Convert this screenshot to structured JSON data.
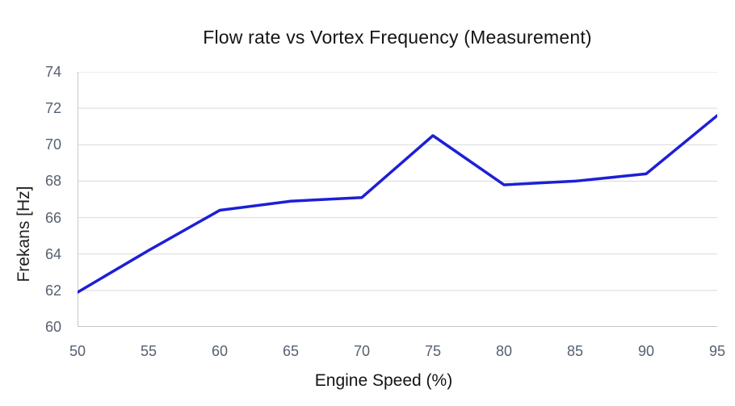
{
  "chart_data": {
    "type": "line",
    "title": "Flow rate vs Vortex Frequency (Measurement)",
    "xlabel": "Engine Speed (%)",
    "ylabel": "Frekans [Hz]",
    "x": [
      50,
      55,
      60,
      65,
      70,
      75,
      80,
      85,
      90,
      95
    ],
    "y": [
      61.9,
      64.2,
      66.4,
      66.9,
      67.1,
      70.5,
      67.8,
      68.0,
      68.4,
      71.6
    ],
    "xlim": [
      50,
      95
    ],
    "ylim": [
      60,
      74
    ],
    "x_ticks": [
      50,
      55,
      60,
      65,
      70,
      75,
      80,
      85,
      90,
      95
    ],
    "y_ticks": [
      60,
      62,
      64,
      66,
      68,
      70,
      72,
      74
    ],
    "grid": true,
    "legend": false,
    "colors": {
      "line": "#1d1fd6",
      "grid": "#d9d9d9",
      "axis": "#c6c6c6",
      "tick_text": "#566070",
      "title_text": "#141414"
    }
  }
}
